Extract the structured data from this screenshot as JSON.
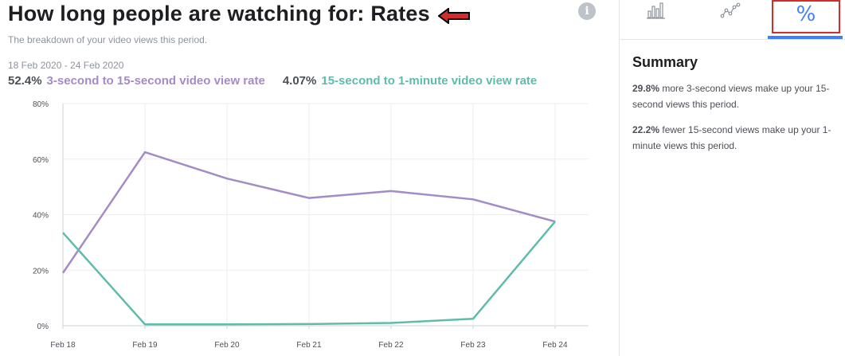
{
  "header": {
    "title": "How long people are watching for: Rates",
    "subtitle": "The breakdown of your video views this period.",
    "info_icon": "info-icon",
    "date_range": "18 Feb 2020 - 24 Feb 2020"
  },
  "metrics": [
    {
      "value": "52.4%",
      "label": "3-second to 15-second video view rate",
      "color": "#a38cc6"
    },
    {
      "value": "4.07%",
      "label": "15-second to 1-minute video view rate",
      "color": "#5ebcaa"
    }
  ],
  "chart_data": {
    "type": "line",
    "categories": [
      "Feb 18",
      "Feb 19",
      "Feb 20",
      "Feb 21",
      "Feb 22",
      "Feb 23",
      "Feb 24"
    ],
    "y_ticks": [
      "0%",
      "20%",
      "40%",
      "60%",
      "80%"
    ],
    "ylim": [
      0,
      80
    ],
    "grid": true,
    "series": [
      {
        "name": "3-second to 15-second video view rate",
        "color": "#a38cc6",
        "values": [
          19,
          62.5,
          53,
          46,
          48.5,
          45.5,
          37.5
        ]
      },
      {
        "name": "15-second to 1-minute video view rate",
        "color": "#5ebcaa",
        "values": [
          33.5,
          0.5,
          0.5,
          0.6,
          1.0,
          2.5,
          37.5
        ]
      }
    ]
  },
  "sidebar": {
    "tabs": [
      {
        "name": "bar-chart-icon",
        "active": false
      },
      {
        "name": "trend-icon",
        "active": false
      },
      {
        "name": "percent-icon",
        "label": "%",
        "active": true
      }
    ],
    "summary_title": "Summary",
    "items": [
      {
        "highlight": "29.8%",
        "text": " more 3-second views make up your 15-second views this period."
      },
      {
        "highlight": "22.2%",
        "text": " fewer 15-second views make up your 1-minute views this period."
      }
    ]
  },
  "colors": {
    "accent": "#4080ff",
    "highlight_box": "#d62b2b",
    "arrow": "#d62b2b"
  }
}
